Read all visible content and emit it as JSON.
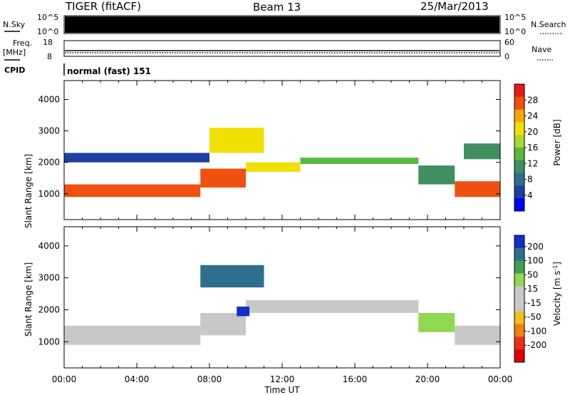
{
  "header": {
    "title": "TIGER (fitACF)",
    "beam": "Beam 13",
    "date": "25/Mar/2013"
  },
  "nsky_panel": {
    "left_label": "N.Sky",
    "right_label": "N.Search",
    "left_ticks": [
      "10^5",
      "10^0"
    ],
    "right_ticks": [
      "10^5",
      "10^0"
    ]
  },
  "freq_panel": {
    "left_label_line1": "Freq.",
    "left_label_line2": "[MHz]",
    "right_label": "Nave",
    "left_ticks": [
      "18",
      "8"
    ],
    "right_ticks": [
      "60",
      "0"
    ]
  },
  "cpid": {
    "label": "CPID",
    "value": "normal (fast) 151"
  },
  "chart_data": [
    {
      "type": "heatmap",
      "name": "power",
      "xlabel": "Time UT",
      "ylabel": "Slant Range [km]",
      "x_ticks": [
        "00:00",
        "04:00",
        "08:00",
        "12:00",
        "16:00",
        "20:00",
        "00:00"
      ],
      "y_ticks": [
        1000,
        2000,
        3000,
        4000
      ],
      "ylim": [
        180,
        4600
      ],
      "colorbar": {
        "label": "Power [dB]",
        "ticks": [
          4,
          8,
          12,
          16,
          20,
          24,
          28
        ],
        "range": [
          0,
          32
        ],
        "colors": [
          "#0000ff",
          "#1f3fa0",
          "#2e6f8e",
          "#3f8f60",
          "#58b840",
          "#a8d830",
          "#f0e000",
          "#f8a800",
          "#f05010",
          "#e81818"
        ]
      },
      "bands": [
        {
          "t": [
            0,
            7.5
          ],
          "r": [
            900,
            1300
          ],
          "value": 28
        },
        {
          "t": [
            7.5,
            10
          ],
          "r": [
            1200,
            1800
          ],
          "value": 26
        },
        {
          "t": [
            10,
            13
          ],
          "r": [
            1700,
            2000
          ],
          "value": 22
        },
        {
          "t": [
            13,
            19.5
          ],
          "r": [
            1950,
            2150
          ],
          "value": 14
        },
        {
          "t": [
            19.5,
            21.5
          ],
          "r": [
            1300,
            1900
          ],
          "value": 10
        },
        {
          "t": [
            21.5,
            24
          ],
          "r": [
            900,
            1400
          ],
          "value": 27
        },
        {
          "t": [
            0,
            8
          ],
          "r": [
            2000,
            2300
          ],
          "value": 6
        },
        {
          "t": [
            8,
            11
          ],
          "r": [
            2300,
            3100
          ],
          "value": 20
        },
        {
          "t": [
            22,
            24
          ],
          "r": [
            2100,
            2600
          ],
          "value": 12
        }
      ]
    },
    {
      "type": "heatmap",
      "name": "velocity",
      "xlabel": "Time UT",
      "ylabel": "Slant Range [km]",
      "x_ticks": [
        "00:00",
        "04:00",
        "08:00",
        "12:00",
        "16:00",
        "20:00",
        "00:00"
      ],
      "y_ticks": [
        1000,
        2000,
        3000,
        4000
      ],
      "ylim": [
        180,
        4600
      ],
      "colorbar": {
        "label": "Velocity [m s^-1]",
        "ticks": [
          200,
          100,
          50,
          15,
          -15,
          -50,
          -100,
          -200
        ],
        "colors": [
          "#1030c8",
          "#2e6f8e",
          "#3f9f50",
          "#8fd850",
          "#c8c8c8",
          "#c8c8c8",
          "#f0c020",
          "#f08010",
          "#e83018",
          "#e00000"
        ]
      },
      "bands": [
        {
          "t": [
            0,
            7.5
          ],
          "r": [
            900,
            1500
          ],
          "value": 0
        },
        {
          "t": [
            7.5,
            10
          ],
          "r": [
            1200,
            1900
          ],
          "value": 0
        },
        {
          "t": [
            10,
            19.5
          ],
          "r": [
            1900,
            2300
          ],
          "value": 0
        },
        {
          "t": [
            9.5,
            10.2
          ],
          "r": [
            1800,
            2100
          ],
          "value": 200
        },
        {
          "t": [
            7.5,
            11
          ],
          "r": [
            2700,
            3400
          ],
          "value": 150
        },
        {
          "t": [
            19.5,
            21.5
          ],
          "r": [
            1300,
            1900
          ],
          "value": 30
        },
        {
          "t": [
            21.5,
            24
          ],
          "r": [
            900,
            1500
          ],
          "value": 0
        }
      ]
    }
  ]
}
